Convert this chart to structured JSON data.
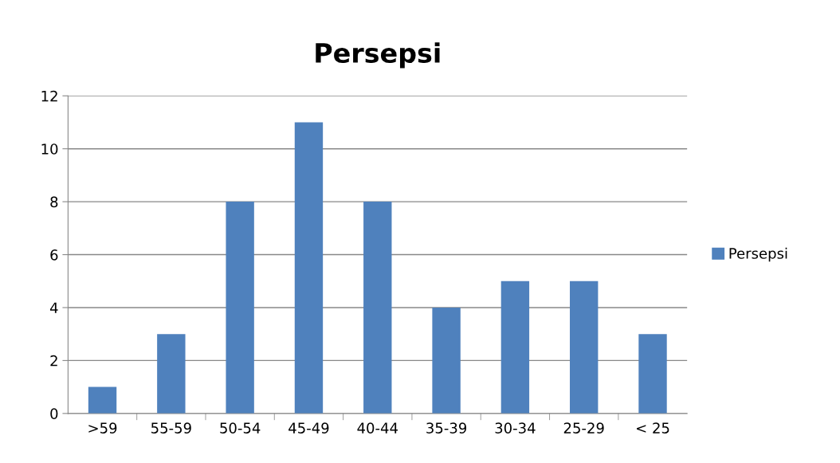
{
  "chart_data": {
    "type": "bar",
    "title": "Persepsi",
    "categories": [
      ">59",
      "55-59",
      "50-54",
      "45-49",
      "40-44",
      "35-39",
      "30-34",
      "25-29",
      "< 25"
    ],
    "series": [
      {
        "name": "Persepsi",
        "color": "#4f81bd",
        "values": [
          1,
          3,
          8,
          11,
          8,
          4,
          5,
          5,
          3
        ]
      }
    ],
    "ylim": [
      0,
      12
    ],
    "yticks": [
      0,
      2,
      4,
      6,
      8,
      10,
      12
    ],
    "grid": "y",
    "legend": "right"
  }
}
